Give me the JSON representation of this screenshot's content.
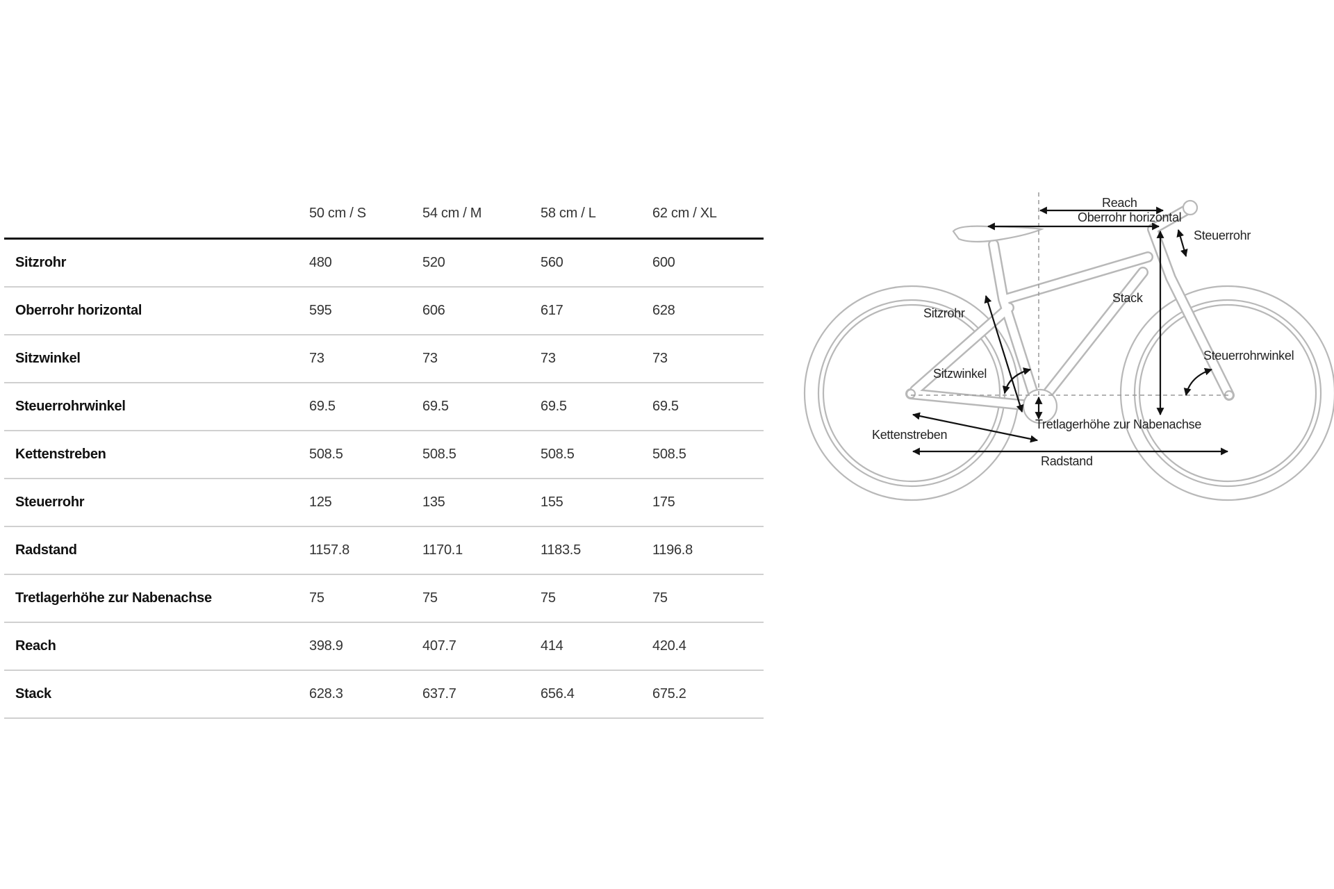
{
  "table": {
    "columns": [
      "50 cm / S",
      "54 cm / M",
      "58 cm / L",
      "62 cm / XL"
    ],
    "rows": [
      {
        "label": "Sitzrohr",
        "values": [
          "480",
          "520",
          "560",
          "600"
        ]
      },
      {
        "label": "Oberrohr horizontal",
        "values": [
          "595",
          "606",
          "617",
          "628"
        ]
      },
      {
        "label": "Sitzwinkel",
        "values": [
          "73",
          "73",
          "73",
          "73"
        ]
      },
      {
        "label": "Steuerrohrwinkel",
        "values": [
          "69.5",
          "69.5",
          "69.5",
          "69.5"
        ]
      },
      {
        "label": "Kettenstreben",
        "values": [
          "508.5",
          "508.5",
          "508.5",
          "508.5"
        ]
      },
      {
        "label": "Steuerrohr",
        "values": [
          "125",
          "135",
          "155",
          "175"
        ]
      },
      {
        "label": "Radstand",
        "values": [
          "1157.8",
          "1170.1",
          "1183.5",
          "1196.8"
        ]
      },
      {
        "label": "Tretlagerhöhe zur Nabenachse",
        "values": [
          "75",
          "75",
          "75",
          "75"
        ]
      },
      {
        "label": "Reach",
        "values": [
          "398.9",
          "407.7",
          "414",
          "420.4"
        ]
      },
      {
        "label": "Stack",
        "values": [
          "628.3",
          "637.7",
          "656.4",
          "675.2"
        ]
      }
    ]
  },
  "diagram": {
    "labels": {
      "reach": "Reach",
      "top_tube": "Oberrohr horizontal",
      "head_tube": "Steuerrohr",
      "stack": "Stack",
      "seat_tube": "Sitzrohr",
      "head_angle": "Steuerrohrwinkel",
      "seat_angle": "Sitzwinkel",
      "bb_drop": "Tretlagerhöhe zur Nabenachse",
      "chainstay": "Kettenstreben",
      "wheelbase": "Radstand"
    },
    "colors": {
      "frame": "#b8b8b8",
      "arrows": "#111111"
    }
  }
}
